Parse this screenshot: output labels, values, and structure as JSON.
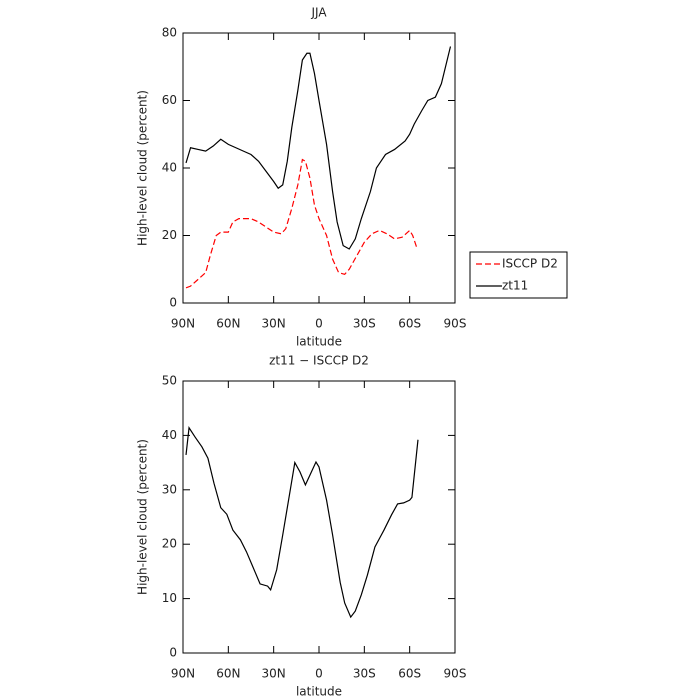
{
  "chart_data": [
    {
      "type": "line",
      "title": "JJA",
      "xlabel": "latitude",
      "ylabel": "High-level cloud (percent)",
      "xlim": [
        90,
        -90
      ],
      "ylim": [
        0,
        80
      ],
      "xticks": [
        {
          "value": 90,
          "label": "90N"
        },
        {
          "value": 60,
          "label": "60N"
        },
        {
          "value": 30,
          "label": "30N"
        },
        0,
        {
          "value": -30,
          "label": "30S"
        },
        {
          "value": -60,
          "label": "60S"
        },
        {
          "value": -90,
          "label": "90S"
        }
      ],
      "yticks": [
        0,
        20,
        40,
        60,
        80
      ],
      "legend": "outside-right",
      "series": [
        {
          "name": "ISCCP D2",
          "color": "#ff0000",
          "dashed": true,
          "x": [
            88,
            85,
            80,
            75,
            72,
            68,
            65,
            60,
            57,
            53,
            45,
            40,
            35,
            30,
            25,
            22,
            18,
            14,
            11,
            9,
            6,
            3,
            0,
            -5,
            -9,
            -13,
            -17,
            -20,
            -25,
            -30,
            -35,
            -40,
            -45,
            -50,
            -55,
            -60,
            -62,
            -65
          ],
          "values": [
            4.5,
            5,
            7,
            9,
            14,
            20,
            21,
            21,
            24,
            25,
            25,
            24,
            22.5,
            21,
            20.5,
            22,
            28,
            35,
            42.5,
            42,
            37,
            29,
            25,
            20,
            13,
            9,
            8.5,
            10,
            14,
            18,
            20.5,
            21.5,
            20.5,
            19,
            19.5,
            21.5,
            20,
            16
          ]
        },
        {
          "name": "zt11",
          "color": "#000000",
          "dashed": false,
          "x": [
            88,
            85,
            80,
            75,
            70,
            65,
            60,
            55,
            50,
            45,
            40,
            35,
            30,
            27,
            24,
            21,
            18,
            14,
            11,
            8,
            6,
            3,
            0,
            -5,
            -9,
            -12,
            -16,
            -20,
            -24,
            -28,
            -34,
            -38,
            -44,
            -50,
            -57,
            -60,
            -63,
            -68,
            -72,
            -77,
            -81,
            -87
          ],
          "values": [
            41.5,
            46,
            45.5,
            45,
            46.5,
            48.5,
            47,
            46,
            45,
            44,
            42,
            39,
            36,
            34,
            35,
            42,
            52,
            63,
            72,
            74,
            74,
            68,
            60,
            47,
            33,
            24,
            17,
            16,
            19,
            25,
            33,
            40,
            44,
            45.5,
            48,
            50,
            53,
            57,
            60,
            61,
            65,
            76
          ]
        }
      ]
    },
    {
      "type": "line",
      "title": "zt11 − ISCCP D2",
      "xlabel": "latitude",
      "ylabel": "High-level cloud (percent)",
      "xlim": [
        90,
        -90
      ],
      "ylim": [
        0,
        50
      ],
      "xticks": [
        {
          "value": 90,
          "label": "90N"
        },
        {
          "value": 60,
          "label": "60N"
        },
        {
          "value": 30,
          "label": "30N"
        },
        0,
        {
          "value": -30,
          "label": "30S"
        },
        {
          "value": -60,
          "label": "60S"
        },
        {
          "value": -90,
          "label": "90S"
        }
      ],
      "yticks": [
        0,
        10,
        20,
        30,
        40,
        50
      ],
      "series": [
        {
          "color": "#000000",
          "dashed": false,
          "x": [
            88,
            86,
            82,
            77.5,
            73.5,
            69.5,
            65,
            61,
            57,
            52,
            48,
            44,
            39,
            34,
            32,
            28,
            24,
            19,
            16,
            12.6,
            9,
            6,
            2,
            0,
            -5,
            -9,
            -14,
            -17,
            -21,
            -24,
            -28,
            -32,
            -37,
            -43,
            -48,
            -52,
            -56,
            -60,
            -61.5,
            -65.5
          ],
          "values": [
            36.4,
            41.4,
            39.7,
            37.9,
            35.8,
            31.2,
            26.7,
            25.5,
            22.6,
            20.8,
            18.6,
            16,
            12.7,
            12.3,
            11.6,
            15.3,
            21.7,
            30,
            35,
            33.3,
            30.9,
            32.7,
            35.1,
            34.2,
            28.1,
            21.7,
            13,
            9.2,
            6.6,
            7.7,
            10.7,
            14.3,
            19.5,
            22.6,
            25.4,
            27.4,
            27.6,
            28.1,
            28.6,
            39.2
          ]
        }
      ]
    }
  ]
}
